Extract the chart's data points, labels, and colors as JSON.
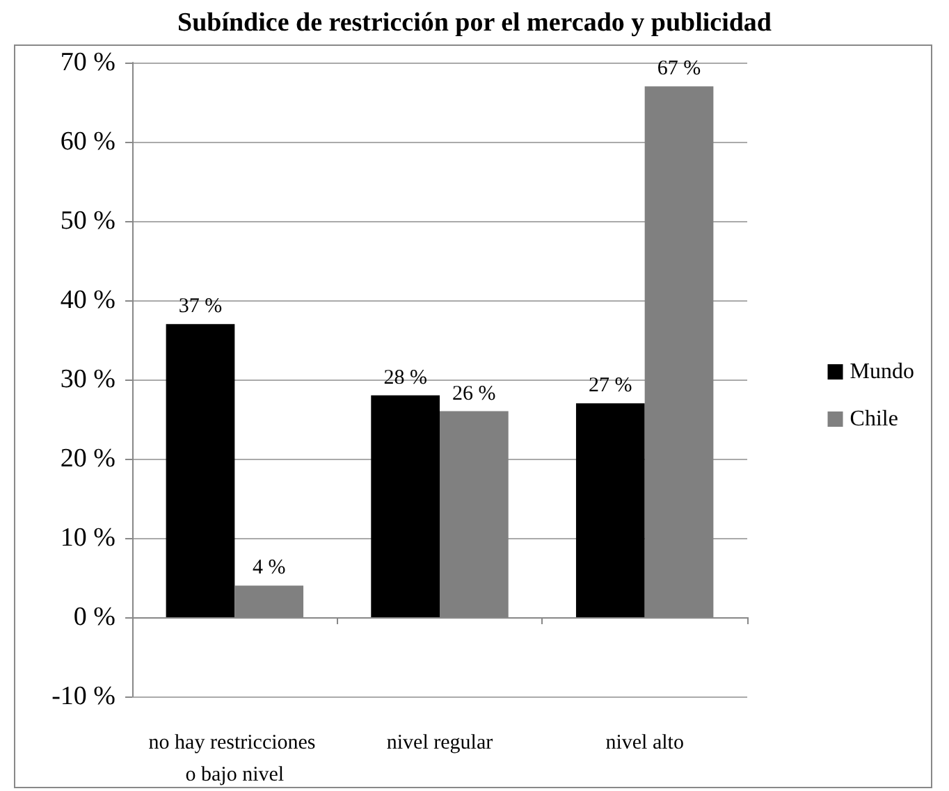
{
  "chart_data": {
    "type": "bar",
    "title": "Subíndice de restricción por el mercado y publicidad",
    "categories": [
      "no hay restricciones o bajo nivel",
      "nivel regular",
      "nivel alto"
    ],
    "series": [
      {
        "name": "Mundo",
        "color": "#000000",
        "values": [
          37,
          28,
          27
        ],
        "value_labels": [
          "37 %",
          "28 %",
          "27 %"
        ]
      },
      {
        "name": "Chile",
        "color": "#808080",
        "values": [
          4,
          26,
          67
        ],
        "value_labels": [
          "4 %",
          "26 %",
          "67 %"
        ]
      }
    ],
    "ylim": [
      -10,
      70
    ],
    "yticks": [
      {
        "value": -10,
        "label": "-10 %"
      },
      {
        "value": 0,
        "label": "0 %"
      },
      {
        "value": 10,
        "label": "10 %"
      },
      {
        "value": 20,
        "label": "20 %"
      },
      {
        "value": 30,
        "label": "30 %"
      },
      {
        "value": 40,
        "label": "40 %"
      },
      {
        "value": 50,
        "label": "50 %"
      },
      {
        "value": 60,
        "label": "60 %"
      },
      {
        "value": 70,
        "label": "70 %"
      }
    ],
    "grid": "y",
    "legend": "right"
  }
}
